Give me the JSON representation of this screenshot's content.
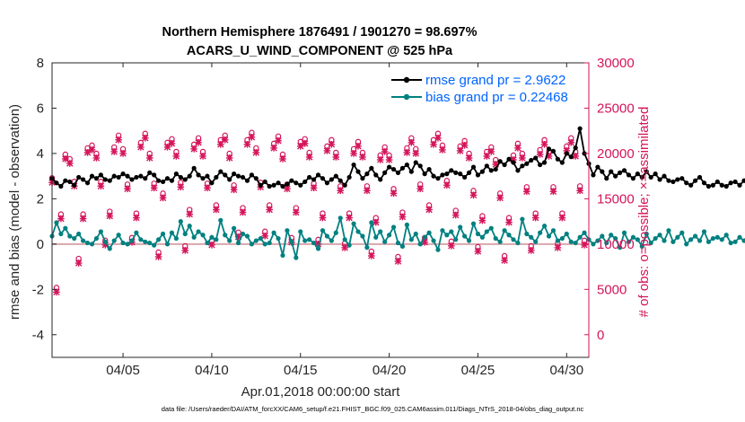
{
  "chart_data": {
    "type": "line",
    "title_line1": "Northern Hemisphere 1876491 / 1901270 = 98.697%",
    "title_line2": "ACARS_U_WIND_COMPONENT @ 525 hPa",
    "xlabel": "Apr.01,2018 00:00:00 start",
    "ylabel_left": "rmse and bias (model - observation)",
    "ylabel_right": "# of obs: o=possible; ×=assimilated",
    "footnote": "data file: /Users/raeder/DAI/ATM_forcXX/CAM6_setup/f.e21.FHIST_BGC.f09_025.CAM6assim.011/Diags_NTrS_2018-04/obs_diag_output.nc",
    "xlim": [
      1,
      31.25
    ],
    "ylim_left": [
      -5,
      8
    ],
    "ylim_right": [
      -2500,
      30000
    ],
    "yticks_left": [
      "-4",
      "-2",
      "0",
      "2",
      "4",
      "6",
      "8"
    ],
    "yticks_right": [
      "0",
      "5000",
      "10000",
      "15000",
      "20000",
      "25000",
      "30000"
    ],
    "xticks": [
      {
        "day": 5,
        "label": "04/05"
      },
      {
        "day": 10,
        "label": "04/10"
      },
      {
        "day": 15,
        "label": "04/15"
      },
      {
        "day": 20,
        "label": "04/20"
      },
      {
        "day": 25,
        "label": "04/25"
      },
      {
        "day": 30,
        "label": "04/30"
      }
    ],
    "series": [
      {
        "name": "rmse",
        "legend": "rmse grand pr = 2.9622",
        "color": "#000000",
        "x_start": 1.0,
        "x_step": 0.25,
        "values": [
          2.9,
          2.7,
          2.55,
          2.8,
          2.75,
          2.6,
          2.95,
          2.85,
          2.7,
          3.0,
          2.9,
          3.05,
          2.85,
          2.8,
          3.0,
          2.95,
          3.1,
          3.0,
          2.85,
          2.95,
          3.0,
          2.9,
          3.15,
          3.05,
          2.8,
          2.75,
          2.9,
          2.8,
          3.1,
          2.95,
          2.85,
          3.0,
          3.35,
          3.05,
          2.9,
          3.0,
          2.7,
          2.95,
          3.2,
          3.05,
          2.85,
          3.1,
          3.0,
          2.95,
          2.8,
          3.05,
          2.9,
          2.6,
          2.75,
          2.55,
          2.6,
          2.7,
          2.55,
          2.65,
          2.8,
          2.7,
          2.6,
          2.75,
          2.95,
          2.85,
          3.05,
          2.9,
          2.7,
          2.85,
          3.0,
          2.8,
          2.6,
          2.95,
          3.5,
          3.2,
          2.9,
          3.1,
          3.35,
          3.05,
          2.85,
          3.15,
          3.4,
          3.3,
          3.15,
          3.35,
          3.5,
          3.2,
          3.6,
          3.45,
          3.1,
          3.3,
          3.0,
          2.9,
          3.05,
          3.1,
          3.25,
          3.15,
          3.1,
          2.95,
          3.15,
          3.4,
          3.05,
          3.2,
          3.45,
          3.25,
          3.3,
          3.65,
          3.5,
          3.75,
          3.6,
          3.25,
          3.45,
          3.55,
          3.7,
          3.8,
          3.5,
          3.6,
          4.2,
          4.1,
          3.75,
          3.6,
          4.0,
          3.85,
          4.25,
          5.1,
          4.0,
          3.55,
          3.05,
          3.4,
          3.2,
          2.9,
          3.2,
          3.0,
          3.15,
          3.25,
          3.05,
          2.9,
          3.1,
          2.95,
          3.2,
          2.95,
          3.1,
          2.85,
          3.0,
          2.8,
          2.75,
          2.85,
          2.9,
          2.7,
          2.6,
          2.8,
          2.95,
          2.7,
          2.55,
          2.6,
          2.75,
          2.6,
          2.55,
          2.7,
          2.75,
          2.6,
          2.8,
          2.55,
          2.65,
          2.6,
          2.7,
          2.75,
          2.55,
          2.7,
          2.6,
          2.65,
          2.85,
          2.6,
          2.7,
          2.4,
          2.85,
          3.0,
          2.6,
          2.9,
          2.75,
          2.5,
          2.6,
          2.8,
          2.65,
          2.85,
          2.75,
          2.5,
          2.65,
          2.55,
          2.45,
          2.6,
          2.5,
          2.9,
          2.85,
          2.8,
          2.85,
          2.8,
          2.6,
          3.4,
          2.9,
          2.75,
          2.65,
          2.6
        ]
      },
      {
        "name": "bias",
        "legend": "bias grand pr = 0.22468",
        "color": "#008080",
        "x_start": 1.0,
        "x_step": 0.25,
        "values": [
          0.35,
          0.95,
          0.45,
          0.7,
          0.35,
          0.25,
          0.45,
          0.15,
          0.05,
          0.0,
          0.25,
          0.55,
          0.1,
          -0.2,
          0.15,
          0.4,
          0.05,
          0.0,
          0.15,
          0.5,
          0.2,
          0.1,
          0.05,
          -0.05,
          0.2,
          0.45,
          0.0,
          0.5,
          0.25,
          1.0,
          0.45,
          0.8,
          0.3,
          0.55,
          0.4,
          0.05,
          0.3,
          0.2,
          1.05,
          0.4,
          0.15,
          0.7,
          0.05,
          0.45,
          0.35,
          0.0,
          0.15,
          0.25,
          0.0,
          0.05,
          0.5,
          0.25,
          -0.5,
          0.6,
          0.1,
          -0.6,
          0.55,
          0.15,
          0.2,
          0.05,
          -0.2,
          0.6,
          0.35,
          0.15,
          0.5,
          1.15,
          0.2,
          -0.05,
          0.9,
          0.55,
          0.35,
          -0.15,
          0.95,
          0.3,
          0.55,
          0.1,
          0.4,
          0.75,
          0.05,
          -0.1,
          0.85,
          0.2,
          0.45,
          0.0,
          0.3,
          0.5,
          0.15,
          -0.25,
          0.6,
          0.4,
          0.55,
          0.2,
          0.75,
          0.35,
          0.15,
          0.9,
          0.45,
          0.3,
          0.55,
          0.7,
          0.25,
          0.1,
          0.6,
          0.4,
          0.2,
          0.05,
          1.1,
          0.45,
          0.3,
          0.1,
          0.5,
          0.8,
          0.35,
          0.6,
          0.15,
          0.25,
          0.45,
          0.1,
          0.05,
          0.3,
          0.5,
          0.2,
          0.0,
          0.15,
          0.35,
          0.05,
          0.4,
          0.25,
          -0.15,
          0.5,
          0.1,
          0.3,
          0.2,
          -0.1,
          0.45,
          0.05,
          0.25,
          0.4,
          0.15,
          0.6,
          0.1,
          0.3,
          0.5,
          0.0,
          0.2,
          0.35,
          0.15,
          0.55,
          0.1,
          0.25,
          0.3,
          0.2,
          0.4,
          0.05,
          0.1,
          0.3,
          0.15,
          0.45,
          0.1,
          0.2,
          0.1,
          0.15,
          0.35,
          0.2,
          0.05,
          0.6,
          0.1,
          0.1,
          0.2,
          -0.05,
          0.1,
          0.15,
          0.25,
          0.0,
          0.35,
          0.3,
          0.3,
          0.15,
          0.3,
          0.05,
          0.6,
          0.65,
          0.15,
          0.3,
          0.2,
          0.8,
          1.2,
          0.35,
          -0.05,
          0.35
        ]
      }
    ],
    "nobs": {
      "color": "#d4145a",
      "x": [
        1.0,
        1.25,
        1.5,
        1.75,
        2.0,
        2.25,
        2.5,
        2.75,
        3.0,
        3.25,
        3.5,
        3.75,
        4.0,
        4.25,
        4.5,
        4.75,
        5.0,
        5.25,
        5.5,
        5.75,
        6.0,
        6.25,
        6.5,
        6.75,
        7.0,
        7.25,
        7.5,
        7.75,
        8.0,
        8.25,
        8.5,
        8.75,
        9.0,
        9.25,
        9.5,
        9.75,
        10.0,
        10.25,
        10.5,
        10.75,
        11.0,
        11.25,
        11.5,
        11.75,
        12.0,
        12.25,
        12.5,
        12.75,
        13.0,
        13.25,
        13.5,
        13.75,
        14.0,
        14.25,
        14.5,
        14.75,
        15.0,
        15.25,
        15.5,
        15.75,
        16.0,
        16.25,
        16.5,
        16.75,
        17.0,
        17.25,
        17.5,
        17.75,
        18.0,
        18.25,
        18.5,
        18.75,
        19.0,
        19.25,
        19.5,
        19.75,
        20.0,
        20.25,
        20.5,
        20.75,
        21.0,
        21.25,
        21.5,
        21.75,
        22.0,
        22.25,
        22.5,
        22.75,
        23.0,
        23.25,
        23.5,
        23.75,
        24.0,
        24.25,
        24.5,
        24.75,
        25.0,
        25.25,
        25.5,
        25.75,
        26.0,
        26.25,
        26.5,
        26.75,
        27.0,
        27.25,
        27.5,
        27.75,
        28.0,
        28.25,
        28.5,
        28.75,
        29.0,
        29.25,
        29.5,
        29.75,
        30.0,
        30.25,
        30.5,
        30.75,
        31.0
      ],
      "possible": [
        16900,
        4800,
        12900,
        19500,
        19000,
        16500,
        8000,
        12900,
        20200,
        20500,
        19600,
        16500,
        10000,
        13200,
        20300,
        21600,
        20100,
        16200,
        10300,
        13000,
        20800,
        21800,
        19600,
        16300,
        8700,
        15200,
        20800,
        21200,
        19800,
        16400,
        9400,
        13400,
        20600,
        21300,
        19800,
        16300,
        10000,
        13900,
        21100,
        21600,
        19600,
        16100,
        10900,
        13600,
        21100,
        21900,
        20200,
        16400,
        11000,
        13900,
        20700,
        21500,
        19500,
        16200,
        10300,
        13600,
        20900,
        21200,
        19700,
        16300,
        10100,
        13000,
        20400,
        21100,
        19700,
        16000,
        9700,
        13000,
        20100,
        20900,
        19700,
        16000,
        8800,
        12500,
        19400,
        20300,
        19400,
        15700,
        8200,
        13100,
        20200,
        21300,
        20100,
        16200,
        10300,
        13900,
        21100,
        21800,
        20500,
        16600,
        9900,
        13300,
        20400,
        21000,
        19600,
        15500,
        9300,
        12700,
        19800,
        20300,
        18900,
        15200,
        8300,
        12500,
        19400,
        20700,
        19600,
        15900,
        9400,
        13000,
        20000,
        21100,
        19800,
        15900,
        9700,
        13000,
        20400,
        21300,
        19800,
        16000,
        10000
      ],
      "assimilated": [
        16800,
        4700,
        12800,
        19400,
        18900,
        16400,
        7900,
        12800,
        20100,
        20400,
        19500,
        16400,
        9900,
        13100,
        20200,
        21500,
        20000,
        16100,
        10200,
        12900,
        20700,
        21700,
        19500,
        16200,
        8600,
        15100,
        20700,
        21100,
        19700,
        16300,
        9300,
        13300,
        20500,
        21200,
        19700,
        16200,
        9900,
        13800,
        21000,
        21500,
        19500,
        16000,
        10800,
        13500,
        21000,
        21800,
        20100,
        16300,
        10900,
        13800,
        20600,
        21400,
        19400,
        16100,
        10200,
        13500,
        20800,
        21100,
        19600,
        16200,
        10000,
        12900,
        20300,
        21000,
        19600,
        15900,
        9600,
        12900,
        20000,
        20800,
        19600,
        15900,
        8700,
        12400,
        19300,
        20200,
        19300,
        15600,
        8100,
        13000,
        20100,
        21200,
        20000,
        16100,
        10200,
        13800,
        21000,
        21700,
        20400,
        16500,
        9800,
        13200,
        20300,
        20900,
        19500,
        15400,
        9200,
        12600,
        19700,
        20200,
        18800,
        15100,
        8200,
        12400,
        19300,
        20600,
        19500,
        15800,
        9300,
        12900,
        19900,
        21000,
        19700,
        15800,
        9600,
        12900,
        20300,
        21200,
        19700,
        15900,
        9900
      ]
    }
  }
}
